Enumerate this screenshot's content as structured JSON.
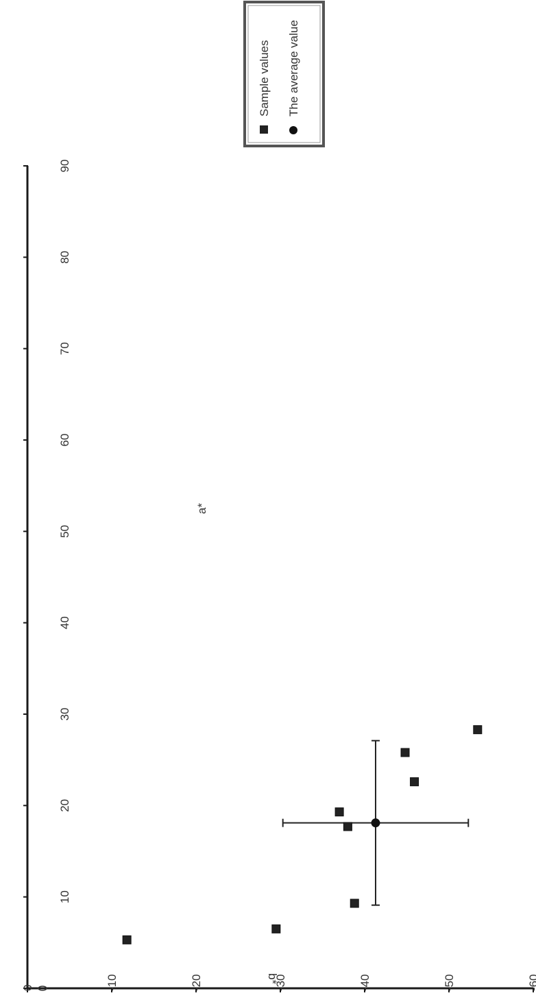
{
  "chart_data": {
    "type": "scatter",
    "orientation": "rotated-90-clockwise",
    "x_axis": {
      "label": "b*",
      "range": [
        0,
        -60
      ],
      "ticks": [
        0,
        -10,
        -20,
        -30,
        -40,
        -50,
        -60
      ]
    },
    "y_axis": {
      "label": "a*",
      "range": [
        0,
        90
      ],
      "ticks": [
        0,
        10,
        20,
        30,
        40,
        50,
        60,
        70,
        80,
        90
      ]
    },
    "grid": false,
    "legend": {
      "placement": "top",
      "entries": [
        {
          "name": "Sample values",
          "marker": "square"
        },
        {
          "name": "The average value",
          "marker": "circle"
        }
      ]
    },
    "series": [
      {
        "name": "Sample values",
        "marker": "square",
        "points": [
          {
            "b": -11.8,
            "a": 5.3
          },
          {
            "b": -29.5,
            "a": 6.5
          },
          {
            "b": -38.8,
            "a": 9.3
          },
          {
            "b": -37.0,
            "a": 19.3
          },
          {
            "b": -38.0,
            "a": 17.7
          },
          {
            "b": -44.8,
            "a": 25.8
          },
          {
            "b": -45.9,
            "a": 22.6
          },
          {
            "b": -53.4,
            "a": 28.3
          }
        ]
      },
      {
        "name": "The average value",
        "marker": "circle",
        "points": [
          {
            "b": -41.3,
            "a": 18.1,
            "b_err": 11.0,
            "a_err": 9.0
          }
        ]
      }
    ],
    "colors": {
      "marker": "#222222",
      "axis": "#1a1a1a",
      "legend_border": "#555555"
    }
  }
}
